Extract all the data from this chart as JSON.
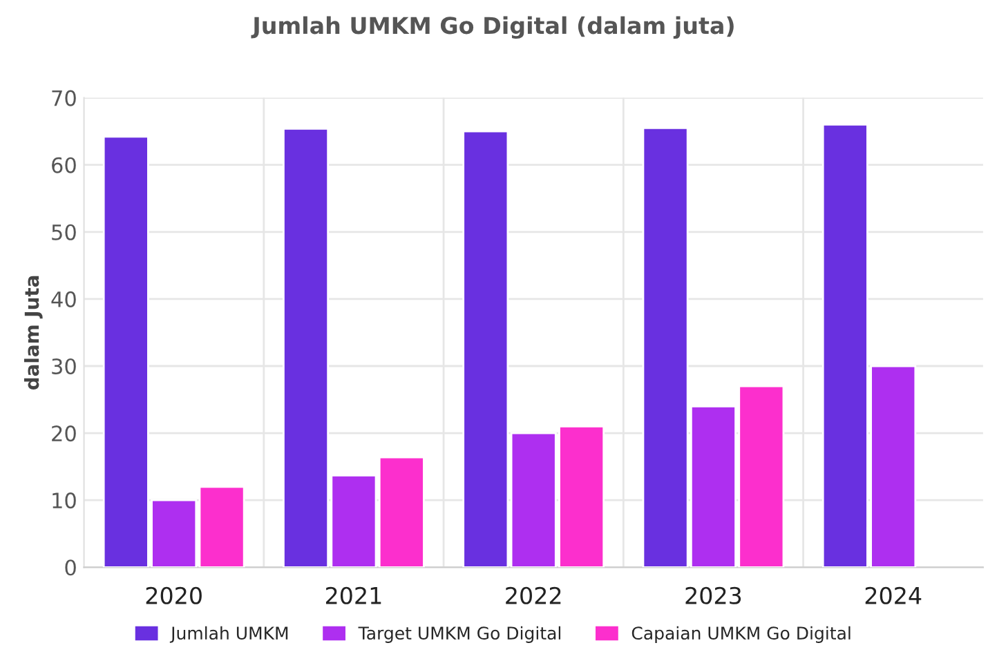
{
  "chart_data": {
    "type": "bar",
    "title": "Jumlah UMKM Go Digital (dalam juta)",
    "ylabel": "dalam Juta",
    "categories": [
      "2020",
      "2021",
      "2022",
      "2023",
      "2024"
    ],
    "series": [
      {
        "name": "Jumlah UMKM",
        "color": "#6930e0",
        "values": [
          64.2,
          65.4,
          65,
          65.5,
          66
        ]
      },
      {
        "name": "Target UMKM Go Digital",
        "color": "#ae2ff0",
        "values": [
          10,
          13.7,
          20,
          24,
          30
        ]
      },
      {
        "name": "Capaian UMKM Go Digital",
        "color": "#fc2fcd",
        "values": [
          12,
          16.4,
          21,
          27,
          null
        ]
      }
    ],
    "ylim": [
      0,
      70
    ],
    "yticks": [
      0,
      10,
      20,
      30,
      40,
      50,
      60,
      70
    ],
    "grid": true,
    "legend": "bottom"
  }
}
